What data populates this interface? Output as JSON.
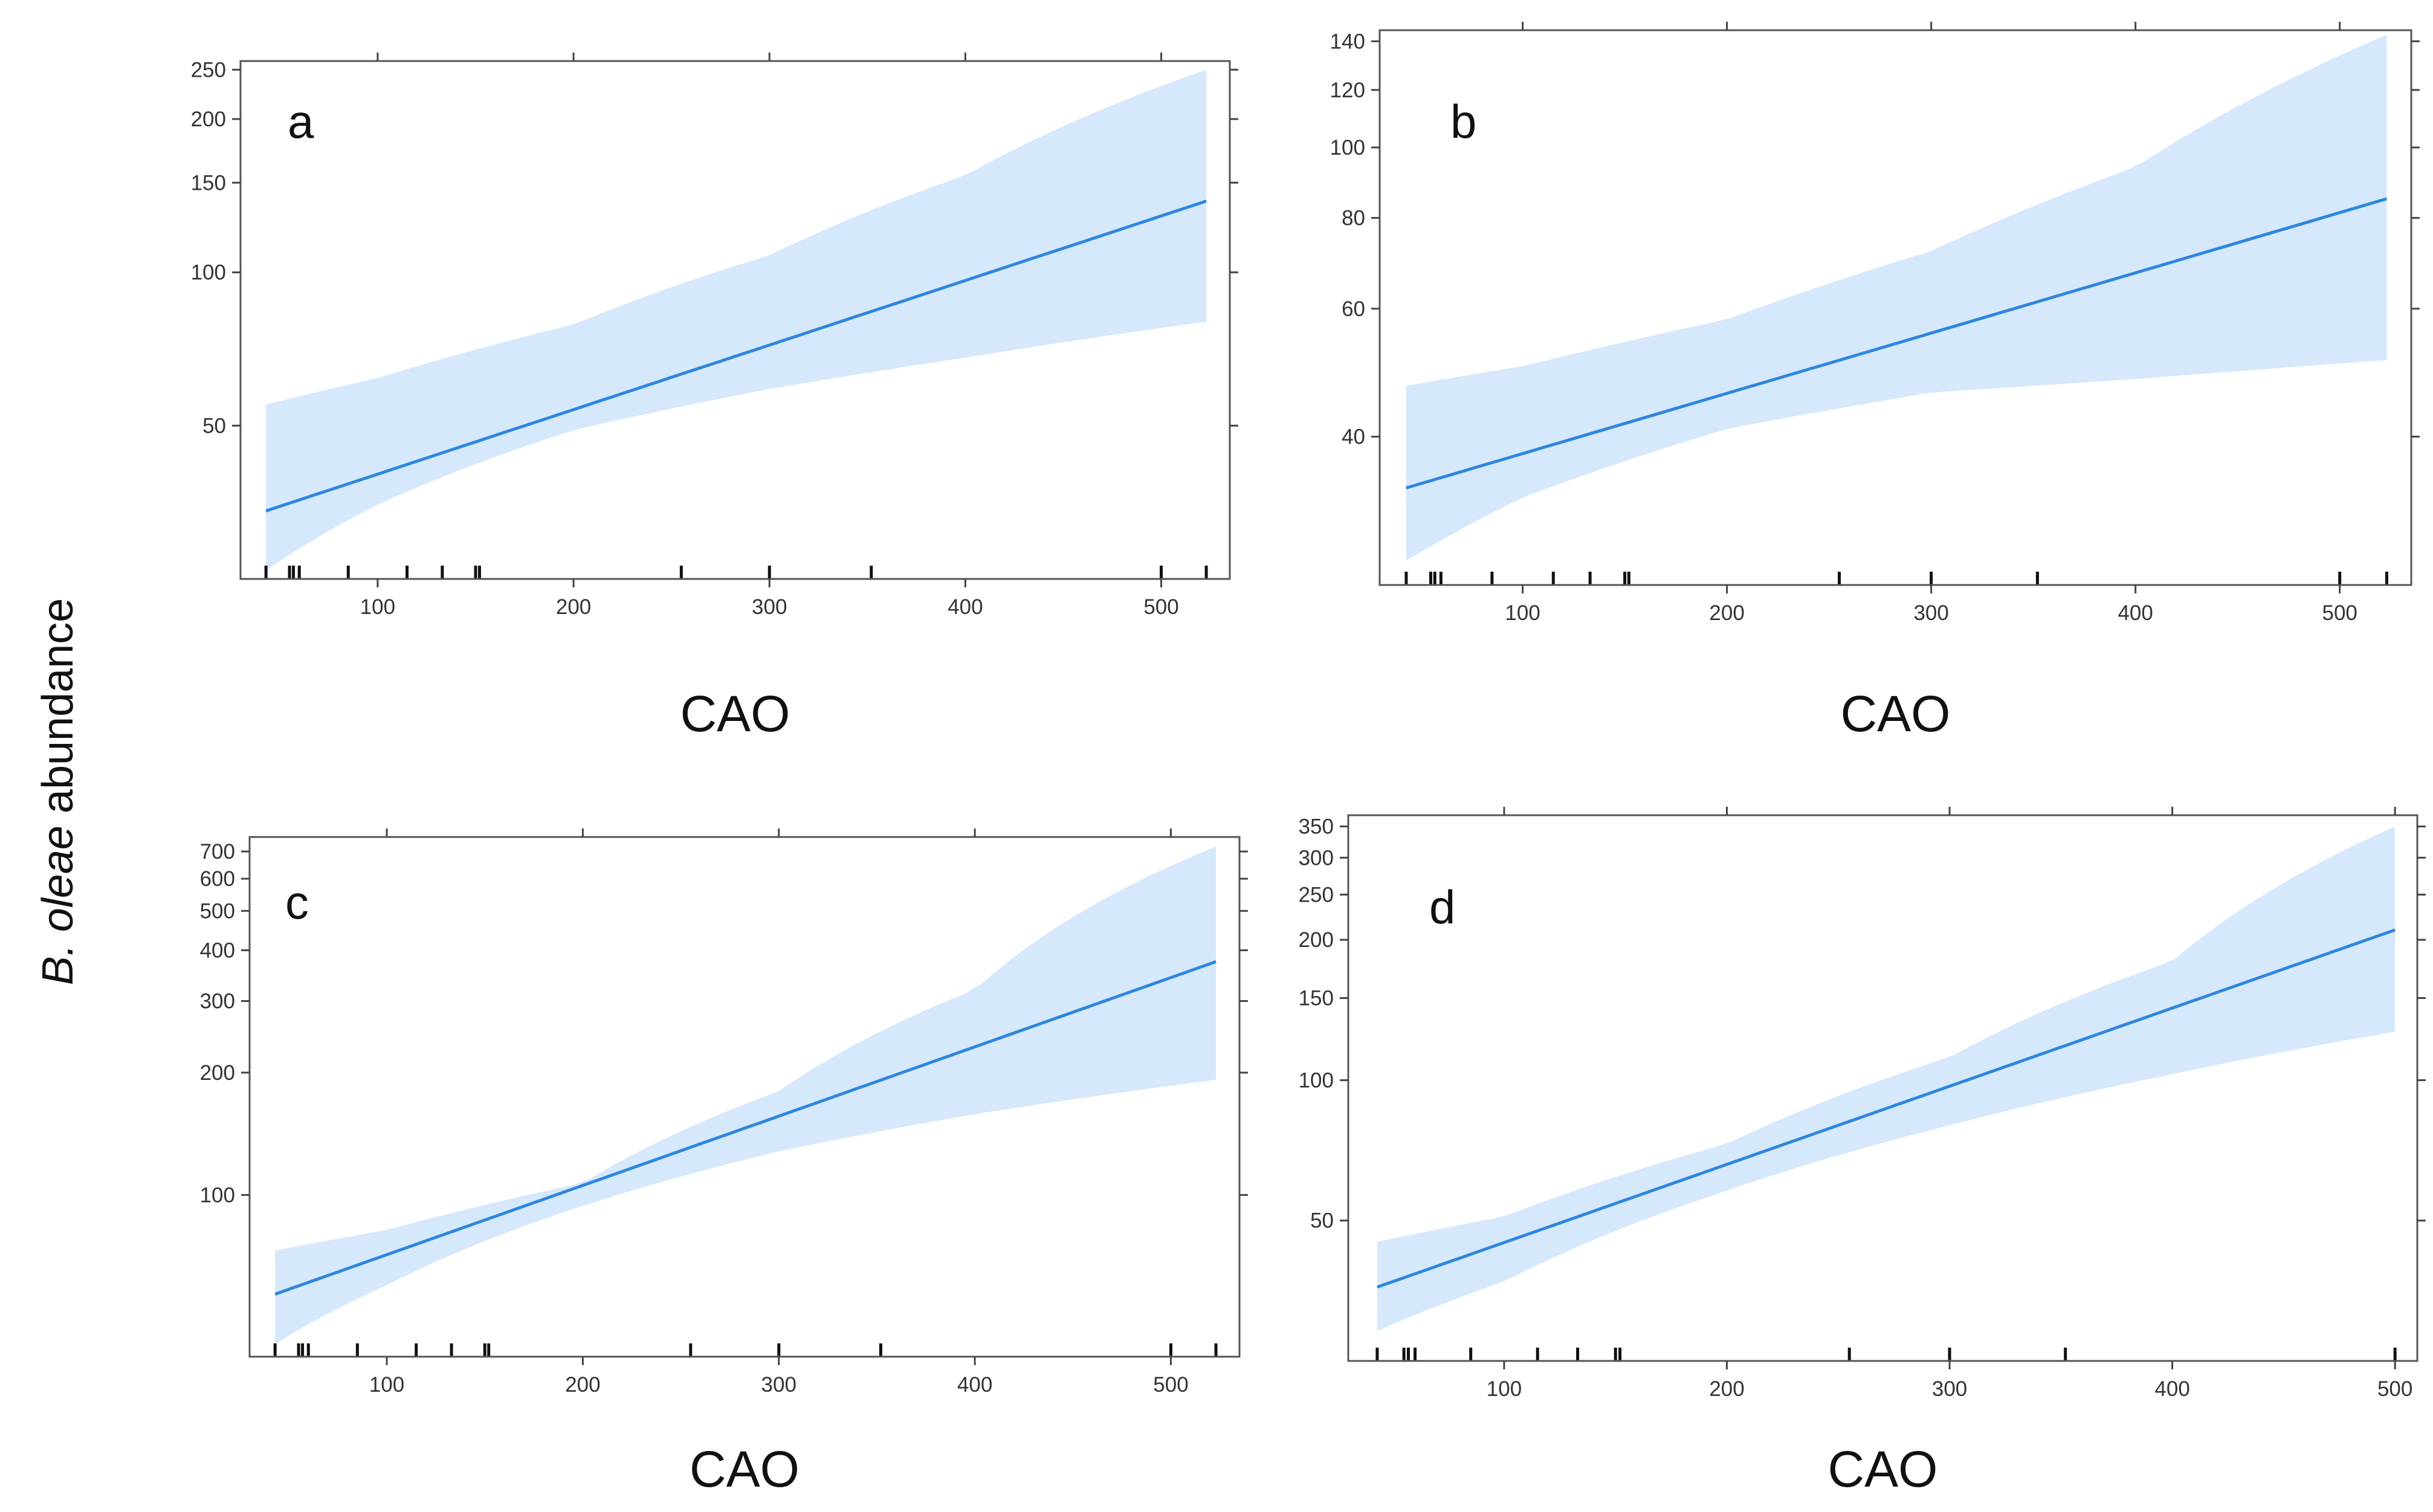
{
  "figure": {
    "ylabel_species": "B. oleae",
    "ylabel_rest": " abundance",
    "colors": {
      "band": "#d6e8fb",
      "line": "#2e86de",
      "frame": "#555555"
    }
  },
  "chart_data": [
    {
      "type": "line",
      "panel": "a",
      "xlabel": "CAO",
      "ylabel": "B. oleae abundance",
      "yscale": "log",
      "xlim": [
        30,
        535
      ],
      "ylim": [
        25,
        260
      ],
      "xticks": [
        100,
        200,
        300,
        400,
        500
      ],
      "yticks": [
        50,
        100,
        150,
        200,
        250
      ],
      "series": [
        {
          "name": "fit",
          "x": [
            43,
            523
          ],
          "y": [
            34,
            138
          ]
        },
        {
          "name": "lower",
          "x": [
            43,
            100,
            200,
            300,
            400,
            523
          ],
          "y": [
            26,
            35,
            49,
            59,
            68,
            80
          ]
        },
        {
          "name": "upper",
          "x": [
            43,
            100,
            200,
            300,
            400,
            523
          ],
          "y": [
            55,
            62,
            79,
            108,
            155,
            250
          ]
        }
      ],
      "rug": [
        43,
        55,
        57,
        60,
        85,
        115,
        133,
        150,
        152,
        255,
        300,
        352,
        500,
        523
      ]
    },
    {
      "type": "line",
      "panel": "b",
      "xlabel": "CAO",
      "ylabel": "B. oleae abundance",
      "yscale": "log",
      "xlim": [
        30,
        535
      ],
      "ylim": [
        25,
        145
      ],
      "xticks": [
        100,
        200,
        300,
        400,
        500
      ],
      "yticks": [
        40,
        60,
        80,
        100,
        120,
        140
      ],
      "series": [
        {
          "name": "fit",
          "x": [
            43,
            523
          ],
          "y": [
            34,
            85
          ]
        },
        {
          "name": "lower",
          "x": [
            43,
            100,
            200,
            300,
            400,
            523
          ],
          "y": [
            27,
            33,
            41,
            46,
            48,
            51
          ]
        },
        {
          "name": "upper",
          "x": [
            43,
            100,
            200,
            300,
            400,
            523
          ],
          "y": [
            47,
            50,
            58,
            72,
            94,
            143
          ]
        }
      ],
      "rug": [
        43,
        55,
        57,
        60,
        85,
        115,
        133,
        150,
        152,
        255,
        300,
        352,
        500,
        523
      ]
    },
    {
      "type": "line",
      "panel": "c",
      "xlabel": "CAO",
      "ylabel": "B. oleae abundance",
      "yscale": "log",
      "xlim": [
        30,
        535
      ],
      "ylim": [
        40,
        760
      ],
      "xticks": [
        100,
        200,
        300,
        400,
        500
      ],
      "yticks": [
        100,
        200,
        300,
        400,
        500,
        600,
        700
      ],
      "series": [
        {
          "name": "fit",
          "x": [
            43,
            523
          ],
          "y": [
            57,
            375
          ]
        },
        {
          "name": "lower",
          "x": [
            43,
            100,
            200,
            300,
            400,
            523
          ],
          "y": [
            43,
            60,
            94,
            128,
            158,
            192
          ]
        },
        {
          "name": "upper",
          "x": [
            43,
            100,
            200,
            300,
            400,
            523
          ],
          "y": [
            73,
            82,
            107,
            180,
            320,
            720
          ]
        }
      ],
      "rug": [
        43,
        55,
        57,
        60,
        85,
        115,
        133,
        150,
        152,
        255,
        300,
        352,
        500,
        523
      ]
    },
    {
      "type": "line",
      "panel": "d",
      "xlabel": "CAO",
      "ylabel": "B. oleae abundance",
      "yscale": "log",
      "xlim": [
        30,
        510
      ],
      "ylim": [
        25,
        370
      ],
      "xticks": [
        100,
        200,
        300,
        400,
        500
      ],
      "yticks": [
        50,
        100,
        150,
        200,
        250,
        300,
        350
      ],
      "series": [
        {
          "name": "fit",
          "x": [
            43,
            500
          ],
          "y": [
            36,
            210
          ]
        },
        {
          "name": "lower",
          "x": [
            43,
            100,
            200,
            300,
            400,
            500
          ],
          "y": [
            29,
            37,
            58,
            80,
            103,
            127
          ]
        },
        {
          "name": "upper",
          "x": [
            43,
            100,
            200,
            300,
            400,
            500
          ],
          "y": [
            45,
            51,
            73,
            112,
            180,
            350
          ]
        }
      ],
      "rug": [
        43,
        55,
        57,
        60,
        85,
        115,
        133,
        150,
        152,
        255,
        300,
        352,
        500
      ]
    }
  ]
}
